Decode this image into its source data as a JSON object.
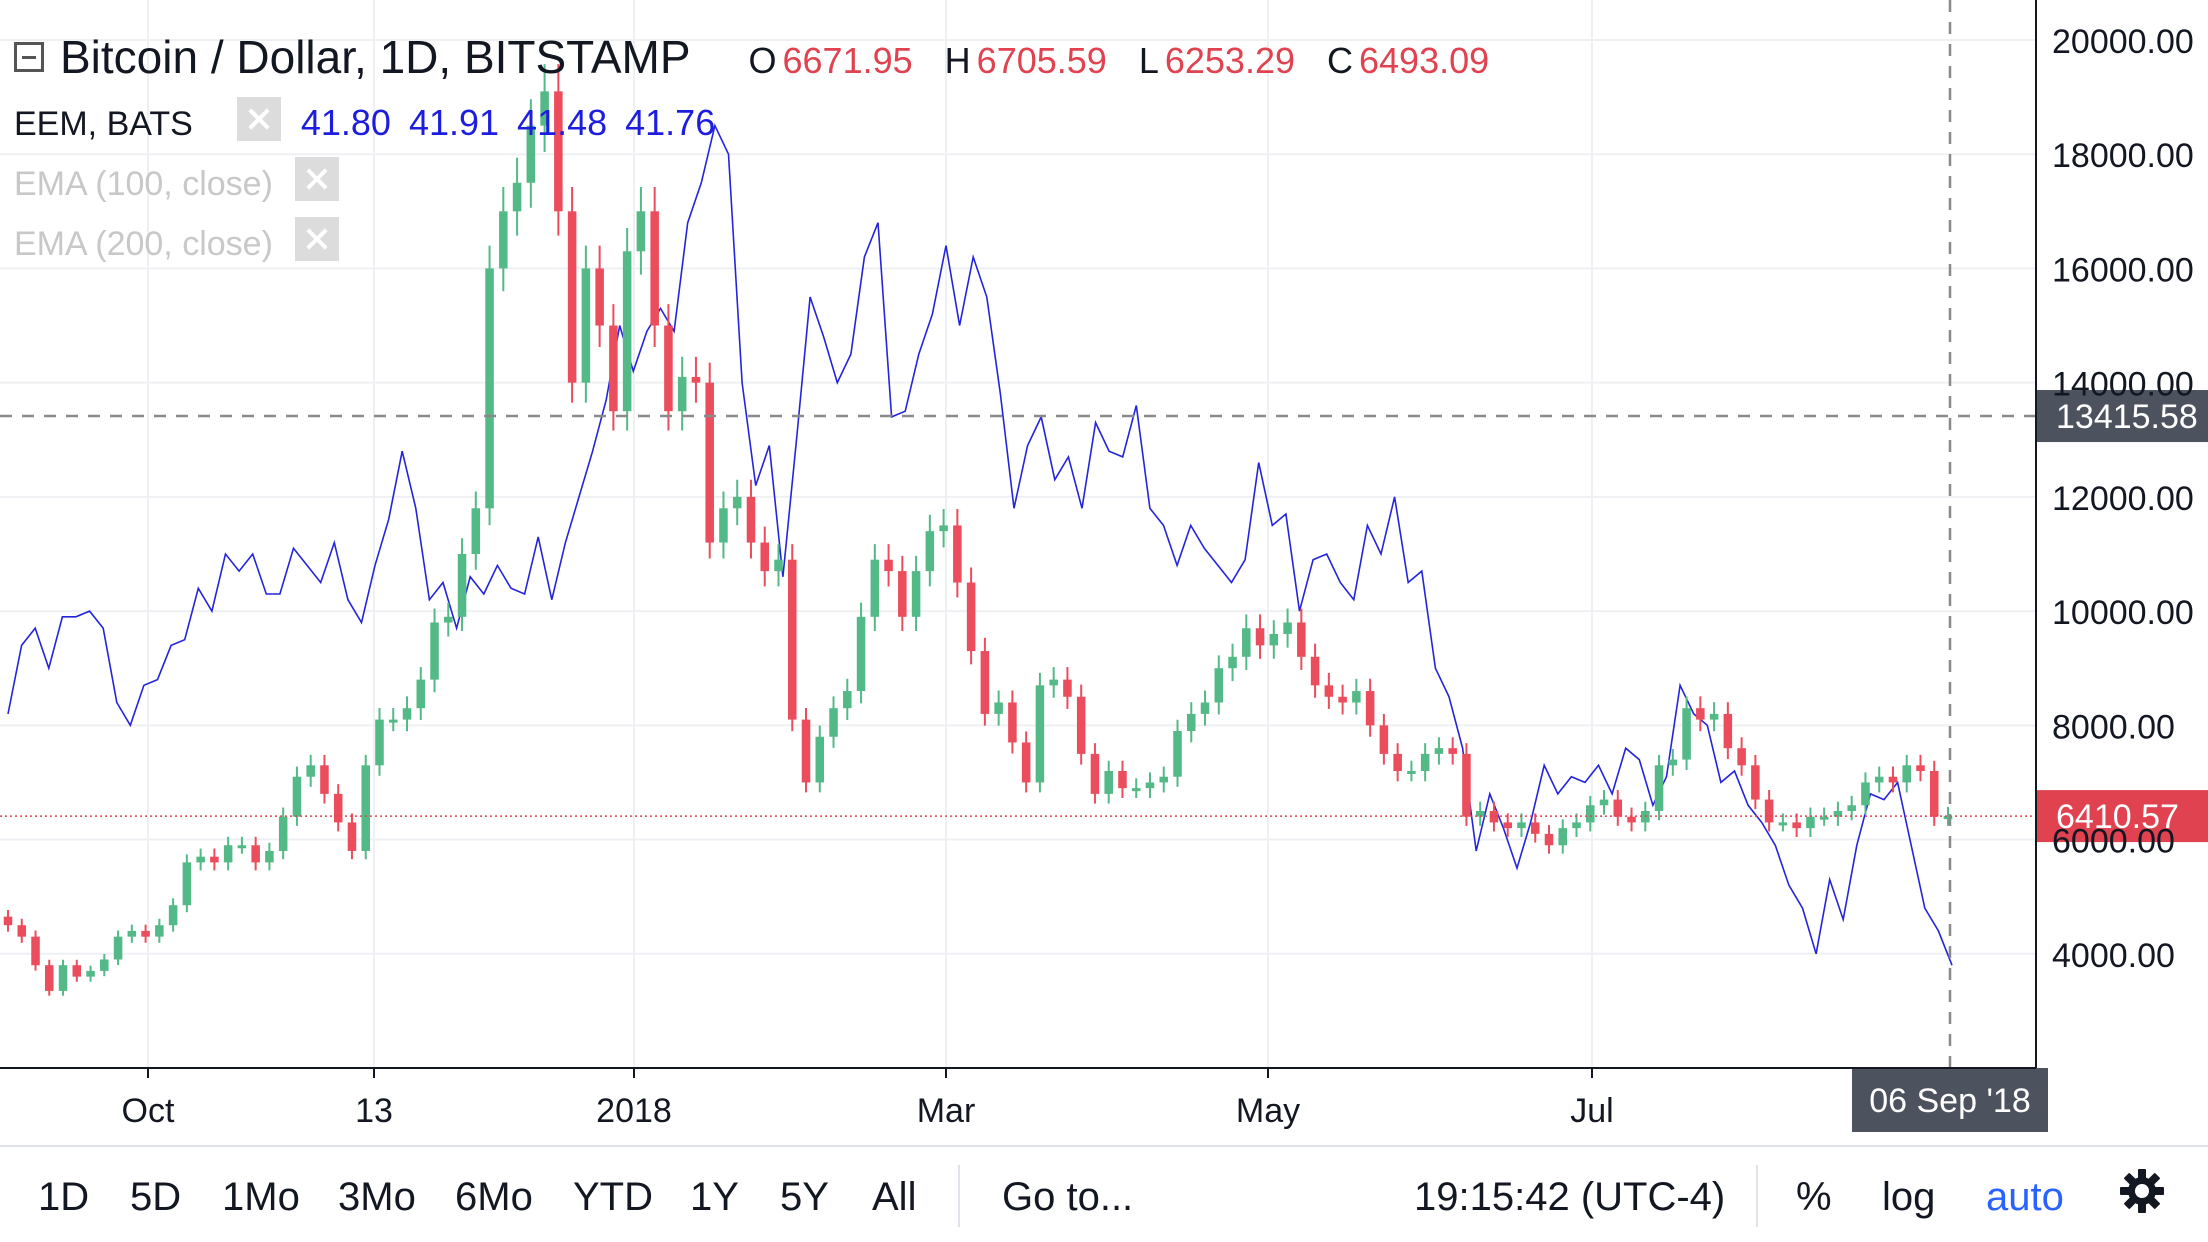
{
  "header": {
    "symbol_title": "Bitcoin / Dollar, 1D, BITSTAMP",
    "ohlc": [
      {
        "key": "O",
        "value": "6671.95"
      },
      {
        "key": "H",
        "value": "6705.59"
      },
      {
        "key": "L",
        "value": "6253.29"
      },
      {
        "key": "C",
        "value": "6493.09"
      }
    ],
    "overlay_title": "EEM, BATS",
    "overlay_values": [
      "41.80",
      "41.91",
      "41.48",
      "41.76"
    ],
    "ema100_label": "EMA (100, close)",
    "ema200_label": "EMA (200, close)"
  },
  "toolbar": {
    "ranges": [
      "1D",
      "5D",
      "1Mo",
      "3Mo",
      "6Mo",
      "YTD",
      "1Y",
      "5Y",
      "All"
    ],
    "goto_label": "Go to...",
    "clock": "19:15:42 (UTC-4)",
    "percent_label": "%",
    "log_label": "log",
    "auto_label": "auto",
    "settings_icon": "gear-icon"
  },
  "colors": {
    "up": "#53b987",
    "down": "#eb4d5c",
    "overlay_line": "#2424dc",
    "grid": "#eef0f3",
    "crosshair": "#8a8a8a",
    "price_line": "#e0424f",
    "auto_active": "#2962ff"
  },
  "chart_data": {
    "type": "candlestick",
    "y_axis_ticks": [
      "4000.00",
      "6000.00",
      "8000.00",
      "10000.00",
      "12000.00",
      "14000.00",
      "16000.00",
      "18000.00",
      "20000.00"
    ],
    "ylim": [
      2000,
      20700
    ],
    "x_axis_ticks": [
      "Oct",
      "13",
      "2018",
      "Mar",
      "May",
      "Jul"
    ],
    "crosshair_price_label": "13415.58",
    "crosshair_price": 13415.58,
    "last_price_label": "6410.57",
    "last_price": 6410.57,
    "crosshair_date_label": "06 Sep '18",
    "grid": true,
    "series": [
      {
        "name": "Bitcoin / Dollar",
        "style": "candles",
        "closes": [
          4500,
          4300,
          3800,
          3350,
          3800,
          3600,
          3700,
          3900,
          4300,
          4400,
          4300,
          4500,
          4850,
          5600,
          5700,
          5600,
          5900,
          5900,
          5600,
          5800,
          6400,
          7100,
          7300,
          6800,
          6300,
          5800,
          7300,
          8100,
          8100,
          8300,
          8800,
          9800,
          9900,
          11000,
          11800,
          16000,
          17000,
          17500,
          18500,
          19100,
          17000,
          14000,
          16000,
          15000,
          13500,
          16300,
          17000,
          15000,
          13500,
          14100,
          14000,
          11200,
          11800,
          12000,
          11200,
          10700,
          10900,
          8100,
          7000,
          7800,
          8300,
          8600,
          9900,
          10900,
          10700,
          9900,
          10700,
          11400,
          11500,
          10500,
          9300,
          8200,
          8400,
          7700,
          7000,
          8700,
          8800,
          8500,
          7500,
          6800,
          7200,
          6900,
          6900,
          7000,
          7100,
          7900,
          8200,
          8400,
          9000,
          9200,
          9700,
          9400,
          9600,
          9800,
          9200,
          8700,
          8500,
          8400,
          8600,
          8000,
          7500,
          7200,
          7200,
          7500,
          7600,
          7500,
          6400,
          6500,
          6300,
          6200,
          6300,
          6100,
          5900,
          6200,
          6300,
          6600,
          6700,
          6400,
          6300,
          6500,
          7300,
          7400,
          8300,
          8100,
          8200,
          7600,
          7300,
          6700,
          6300,
          6300,
          6200,
          6400,
          6400,
          6500,
          6600,
          7000,
          7100,
          7000,
          7300,
          7200,
          6400,
          6410.57
        ],
        "opens_are_previous_close": true
      },
      {
        "name": "EEM, BATS",
        "style": "line",
        "values": [
          8200,
          9400,
          9700,
          9000,
          9900,
          9900,
          10000,
          9700,
          8400,
          8000,
          8700,
          8800,
          9400,
          9500,
          10400,
          10000,
          11000,
          10700,
          11000,
          10300,
          10300,
          11100,
          10800,
          10500,
          11200,
          10200,
          9800,
          10800,
          11600,
          12800,
          11800,
          10200,
          10500,
          9700,
          10600,
          10300,
          10800,
          10400,
          10300,
          11300,
          10200,
          11200,
          12000,
          12800,
          13700,
          15000,
          14200,
          14900,
          15300,
          14900,
          16800,
          17500,
          18500,
          18000,
          14000,
          12200,
          12900,
          10600,
          13000,
          15500,
          14800,
          14000,
          14500,
          16200,
          16800,
          13400,
          13500,
          14500,
          15200,
          16400,
          15000,
          16200,
          15500,
          13800,
          11800,
          12900,
          13400,
          12300,
          12700,
          11800,
          13300,
          12800,
          12700,
          13600,
          11800,
          11500,
          10800,
          11500,
          11100,
          10800,
          10500,
          10900,
          12600,
          11500,
          11700,
          10000,
          10900,
          11000,
          10500,
          10200,
          11500,
          11000,
          12000,
          10500,
          10700,
          9000,
          8500,
          7600,
          5800,
          6800,
          6200,
          5500,
          6300,
          7300,
          6800,
          7100,
          7000,
          7300,
          6800,
          7600,
          7400,
          6600,
          7100,
          8700,
          8200,
          8000,
          7000,
          7200,
          6600,
          6300,
          5900,
          5200,
          4800,
          4000,
          5300,
          4600,
          5900,
          6800,
          6700,
          7000,
          5900,
          4800,
          4400,
          3800
        ]
      }
    ]
  }
}
